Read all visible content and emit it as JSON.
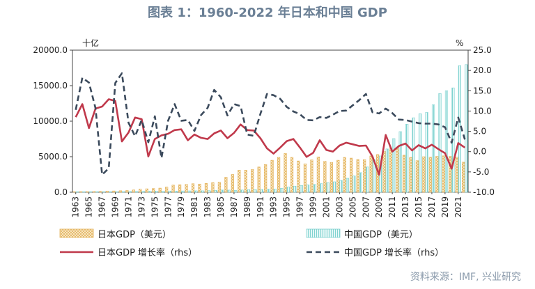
{
  "title": "图表 1：1960-2022 年日本和中国 GDP",
  "source": "资料来源：IMF, 兴业研究",
  "colors": {
    "japan_gdp": "#e3b25a",
    "china_gdp": "#7fd2d0",
    "japan_growth": "#c0394b",
    "china_growth": "#3b4a5c",
    "title": "#6a7f95"
  },
  "chart_data": {
    "type": "bar",
    "x": [
      1963,
      1964,
      1965,
      1966,
      1967,
      1968,
      1969,
      1970,
      1971,
      1972,
      1973,
      1974,
      1975,
      1976,
      1977,
      1978,
      1979,
      1980,
      1981,
      1982,
      1983,
      1984,
      1985,
      1986,
      1987,
      1988,
      1989,
      1990,
      1991,
      1992,
      1993,
      1994,
      1995,
      1996,
      1997,
      1998,
      1999,
      2000,
      2001,
      2002,
      2003,
      2004,
      2005,
      2006,
      2007,
      2008,
      2009,
      2010,
      2011,
      2012,
      2013,
      2014,
      2015,
      2016,
      2017,
      2018,
      2019,
      2020,
      2021,
      2022
    ],
    "x_tick_labels": [
      "1963",
      "1965",
      "1967",
      "1969",
      "1971",
      "1973",
      "1975",
      "1977",
      "1979",
      "1981",
      "1983",
      "1985",
      "1987",
      "1989",
      "1991",
      "1993",
      "1995",
      "1997",
      "1999",
      "2001",
      "2003",
      "2005",
      "2007",
      "2009",
      "2011",
      "2013",
      "2015",
      "2017",
      "2019",
      "2021"
    ],
    "ylabel_left": "十亿",
    "ylabel_right": "%",
    "ylim_left": [
      0,
      20000
    ],
    "left_ticks": [
      "0.0",
      "5000.0",
      "10000.0",
      "15000.0",
      "20000.0"
    ],
    "ylim_right": [
      -10,
      25
    ],
    "right_ticks": [
      "-10.0",
      "-5.0",
      "0.0",
      "5.0",
      "10.0",
      "15.0",
      "20.0",
      "25.0"
    ],
    "series": [
      {
        "name": "日本GDP（美元）",
        "kind": "bar",
        "axis": "left",
        "values": [
          70,
          80,
          90,
          100,
          120,
          150,
          180,
          210,
          240,
          320,
          430,
          480,
          520,
          580,
          720,
          1000,
          1050,
          1100,
          1200,
          1150,
          1250,
          1350,
          1400,
          2100,
          2500,
          3100,
          3100,
          3200,
          3550,
          3900,
          4500,
          4900,
          5450,
          4900,
          4400,
          4000,
          4550,
          4970,
          4350,
          4200,
          4500,
          4900,
          4800,
          4600,
          4580,
          5100,
          5300,
          5760,
          6230,
          6270,
          5210,
          4900,
          4440,
          5000,
          4930,
          5040,
          5120,
          5040,
          4940,
          4230
        ]
      },
      {
        "name": "中国GDP（美元）",
        "kind": "bar",
        "axis": "left",
        "values": [
          60,
          60,
          70,
          80,
          70,
          70,
          80,
          90,
          100,
          110,
          140,
          140,
          160,
          150,
          170,
          150,
          180,
          190,
          200,
          200,
          230,
          260,
          310,
          300,
          270,
          310,
          350,
          360,
          380,
          430,
          440,
          560,
          730,
          860,
          960,
          1030,
          1090,
          1210,
          1340,
          1470,
          1660,
          1960,
          2290,
          2750,
          3550,
          4590,
          5100,
          6090,
          7550,
          8530,
          9570,
          10480,
          11060,
          11230,
          12310,
          13890,
          14280,
          14690,
          17820,
          17960
        ]
      },
      {
        "name": "日本GDP 增长率（rhs）",
        "kind": "line",
        "axis": "right",
        "values": [
          8.5,
          11.7,
          5.8,
          10.6,
          11.1,
          12.9,
          12.5,
          2.5,
          4.7,
          8.4,
          8.0,
          -1.2,
          3.1,
          4.0,
          4.4,
          5.3,
          5.5,
          2.8,
          4.2,
          3.4,
          3.1,
          4.5,
          5.2,
          3.3,
          4.6,
          6.7,
          5.3,
          5.2,
          3.3,
          0.8,
          -0.5,
          1.0,
          2.6,
          3.1,
          1.0,
          -1.3,
          -0.3,
          2.8,
          0.4,
          0.0,
          1.5,
          2.2,
          1.8,
          1.4,
          1.5,
          -1.2,
          -5.7,
          4.1,
          0.0,
          1.4,
          2.0,
          0.3,
          1.6,
          0.8,
          1.7,
          0.6,
          -0.4,
          -4.2,
          2.1,
          1.0
        ]
      },
      {
        "name": "中国GDP 增长率（rhs）",
        "kind": "line",
        "axis": "right",
        "dashed": true,
        "values": [
          10.3,
          18.2,
          17.0,
          10.7,
          -5.7,
          -4.1,
          16.9,
          19.3,
          7.1,
          3.8,
          7.8,
          2.3,
          8.7,
          -1.6,
          7.6,
          11.7,
          7.6,
          7.8,
          5.1,
          9.0,
          10.8,
          15.2,
          13.4,
          8.9,
          11.7,
          11.2,
          4.2,
          3.9,
          9.3,
          14.2,
          13.9,
          13.0,
          11.0,
          9.9,
          9.2,
          7.8,
          7.7,
          8.5,
          8.3,
          9.1,
          10.0,
          10.1,
          11.4,
          12.7,
          14.2,
          9.7,
          9.4,
          10.6,
          9.5,
          7.9,
          7.8,
          7.4,
          7.0,
          6.9,
          6.9,
          6.7,
          6.0,
          2.2,
          8.4,
          3.0
        ]
      }
    ],
    "legend_placement": "bottom",
    "grid": false
  }
}
